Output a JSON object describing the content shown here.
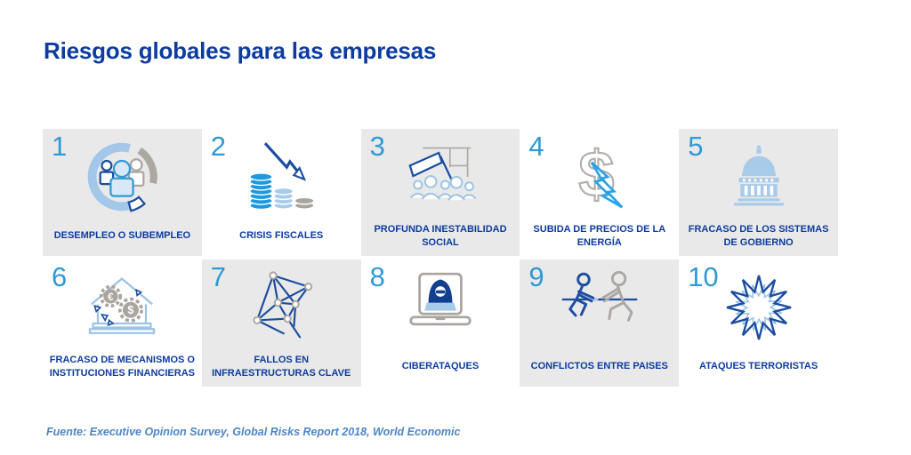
{
  "page": {
    "title": "Riesgos globales para las empresas",
    "source_note": "Fuente: Executive Opinion Survey, Global Risks Report 2018, World Economic"
  },
  "colors": {
    "title_blue": "#0d3ca0",
    "number_blue": "#2f9ad6",
    "label_blue": "#0d3ca0",
    "card_gray": "#e9e9e9",
    "footer_blue": "#4c86c8",
    "icon_dark_blue": "#1b4da0",
    "icon_light_blue": "#a3c7e8",
    "icon_bright_blue": "#29a3e8",
    "icon_gray": "#aba7a3"
  },
  "cards": [
    {
      "number": "1",
      "label": "DESEMPLEO O SUBEMPLEO",
      "icon": "people-donut-chart-icon",
      "shaded": true
    },
    {
      "number": "2",
      "label": "CRISIS FISCALES",
      "icon": "coin-stacks-decline-icon",
      "shaded": false
    },
    {
      "number": "3",
      "label": "PROFUNDA INESTABILIDAD SOCIAL",
      "icon": "protest-crowd-flag-icon",
      "shaded": true
    },
    {
      "number": "4",
      "label": "SUBIDA DE PRECIOS DE LA ENERGÍA",
      "icon": "dollar-lightning-icon",
      "shaded": false
    },
    {
      "number": "5",
      "label": "FRACASO DE LOS SISTEMAS DE GOBIERNO",
      "icon": "capitol-building-icon",
      "shaded": true
    },
    {
      "number": "6",
      "label": "FRACASO DE MECANISMOS O INSTITUCIONES FINANCIERAS",
      "icon": "bank-currency-gears-icon",
      "shaded": false
    },
    {
      "number": "7",
      "label": "FALLOS EN INFRAESTRUCTURAS CLAVE",
      "icon": "network-nodes-icon",
      "shaded": true
    },
    {
      "number": "8",
      "label": "CIBERATAQUES",
      "icon": "hacker-laptop-icon",
      "shaded": false
    },
    {
      "number": "9",
      "label": "CONFLICTOS ENTRE PAISES",
      "icon": "tug-of-war-icon",
      "shaded": true
    },
    {
      "number": "10",
      "label": "ATAQUES TERRORISTAS",
      "icon": "explosion-starburst-icon",
      "shaded": false
    }
  ]
}
